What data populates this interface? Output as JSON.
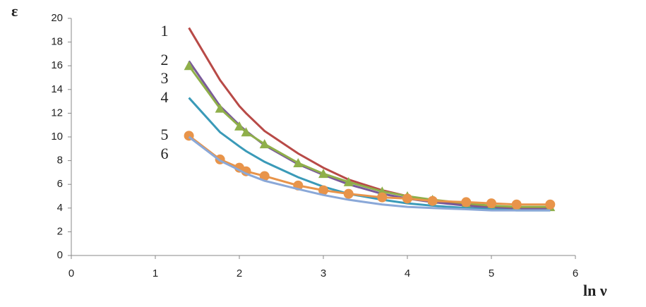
{
  "chart_data": {
    "type": "line",
    "y_label": "ε",
    "x_label": "ln ν",
    "x": [
      1.4,
      1.77,
      2.0,
      2.08,
      2.3,
      2.7,
      3.0,
      3.3,
      3.7,
      4.0,
      4.3,
      4.7,
      5.0,
      5.3,
      5.7
    ],
    "series": [
      {
        "name": "1",
        "color": "#b84a47",
        "marker": "none",
        "values": [
          19.2,
          14.8,
          12.6,
          12.0,
          10.5,
          8.6,
          7.4,
          6.4,
          5.5,
          5.0,
          4.6,
          4.3,
          4.1,
          4.0,
          4.0
        ]
      },
      {
        "name": "2",
        "color": "#7a5a9a",
        "marker": "none",
        "values": [
          16.4,
          12.6,
          11.0,
          10.5,
          9.3,
          7.7,
          6.8,
          6.0,
          5.2,
          4.8,
          4.5,
          4.2,
          4.0,
          3.9,
          3.9
        ]
      },
      {
        "name": "3",
        "color": "#8faf4a",
        "marker": "triangle",
        "values": [
          16.0,
          12.4,
          10.9,
          10.4,
          9.4,
          7.8,
          6.9,
          6.2,
          5.4,
          5.0,
          4.7,
          4.4,
          4.2,
          4.1,
          4.1
        ]
      },
      {
        "name": "4",
        "color": "#3a9ab8",
        "marker": "none",
        "values": [
          13.3,
          10.4,
          9.2,
          8.8,
          7.9,
          6.6,
          5.8,
          5.2,
          4.7,
          4.4,
          4.2,
          4.0,
          3.9,
          3.8,
          3.8
        ]
      },
      {
        "name": "5",
        "color": "#e8944a",
        "marker": "circle",
        "values": [
          10.1,
          8.1,
          7.4,
          7.1,
          6.7,
          5.9,
          5.5,
          5.2,
          4.9,
          4.8,
          4.6,
          4.5,
          4.4,
          4.3,
          4.3
        ]
      },
      {
        "name": "6",
        "color": "#8aa8d8",
        "marker": "none",
        "values": [
          10.0,
          8.0,
          7.2,
          6.9,
          6.3,
          5.6,
          5.1,
          4.7,
          4.3,
          4.1,
          4.0,
          3.9,
          3.8,
          3.8,
          3.8
        ]
      }
    ],
    "xlim": [
      0,
      6
    ],
    "xticks": [
      0,
      1,
      2,
      3,
      4,
      5,
      6
    ],
    "ylim": [
      0,
      20
    ],
    "yticks": [
      0,
      2,
      4,
      6,
      8,
      10,
      12,
      14,
      16,
      18,
      20
    ],
    "grid": false
  }
}
